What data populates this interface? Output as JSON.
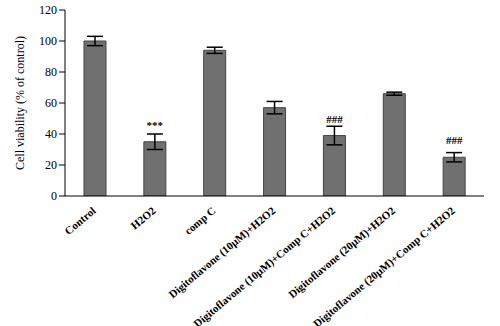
{
  "chart_data": {
    "type": "bar",
    "y_label": "Cell viability (% of control)",
    "categories": [
      "Control",
      "H2O2",
      "comp C",
      "Digitoflavone (10μM)+H2O2",
      "Digitoflavone (10μM)+Comp C+H2O2",
      "Digitoflavone (20μM)+H2O2",
      "Digitoflavone (20μM)+Comp C+H2O2"
    ],
    "values": [
      100,
      35,
      94,
      57,
      39,
      66,
      25
    ],
    "errors": [
      3,
      5,
      2,
      4,
      6,
      1,
      3
    ],
    "color": "#707070",
    "ylim": [
      0,
      120
    ],
    "yticks": [
      0,
      20,
      40,
      60,
      80,
      100,
      120
    ],
    "grid": false,
    "annotations": [
      {
        "category": "H2O2",
        "text": "***"
      },
      {
        "category": "Digitoflavone (10μM)+Comp C+H2O2",
        "text": "###"
      },
      {
        "category": "Digitoflavone (20μM)+Comp C+H2O2",
        "text": "###"
      }
    ]
  }
}
